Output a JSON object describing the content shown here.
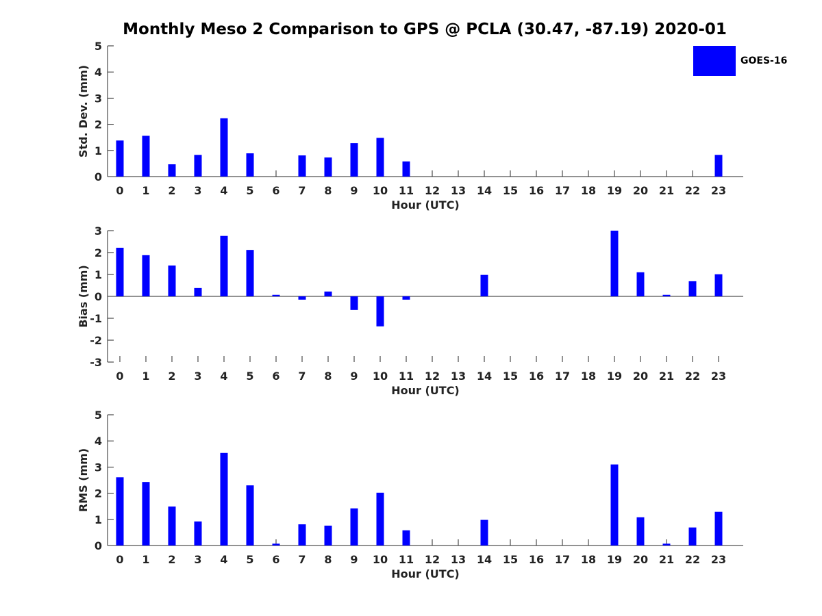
{
  "title": "Monthly Meso 2 Comparison to GPS @ PCLA (30.47, -87.19) 2020-01",
  "legend": {
    "label": "GOES-16",
    "color": "#0000ff"
  },
  "chart_data": [
    {
      "type": "bar",
      "series_name": "GOES-16",
      "xlabel": "Hour (UTC)",
      "ylabel": "Std. Dev. (mm)",
      "ylim": [
        0,
        5
      ],
      "yticks": [
        0,
        1,
        2,
        3,
        4,
        5
      ],
      "categories": [
        "0",
        "1",
        "2",
        "3",
        "4",
        "5",
        "6",
        "7",
        "8",
        "9",
        "10",
        "11",
        "12",
        "13",
        "14",
        "15",
        "16",
        "17",
        "18",
        "19",
        "20",
        "21",
        "22",
        "23"
      ],
      "values": [
        1.38,
        1.56,
        0.47,
        0.83,
        2.23,
        0.89,
        null,
        0.81,
        0.73,
        1.28,
        1.48,
        0.58,
        null,
        null,
        null,
        null,
        null,
        null,
        null,
        null,
        null,
        null,
        null,
        0.83
      ]
    },
    {
      "type": "bar",
      "series_name": "GOES-16",
      "xlabel": "Hour (UTC)",
      "ylabel": "Bias (mm)",
      "ylim": [
        -3,
        3
      ],
      "yticks": [
        -3,
        -2,
        -1,
        0,
        1,
        2,
        3
      ],
      "categories": [
        "0",
        "1",
        "2",
        "3",
        "4",
        "5",
        "6",
        "7",
        "8",
        "9",
        "10",
        "11",
        "12",
        "13",
        "14",
        "15",
        "16",
        "17",
        "18",
        "19",
        "20",
        "21",
        "22",
        "23"
      ],
      "values": [
        2.22,
        1.88,
        1.41,
        0.38,
        2.76,
        2.12,
        0.07,
        -0.15,
        0.22,
        -0.62,
        -1.37,
        -0.15,
        null,
        null,
        0.98,
        null,
        null,
        null,
        null,
        3.0,
        1.1,
        0.07,
        0.69,
        1.01
      ]
    },
    {
      "type": "bar",
      "series_name": "GOES-16",
      "xlabel": "Hour (UTC)",
      "ylabel": "RMS (mm)",
      "ylim": [
        0,
        5
      ],
      "yticks": [
        0,
        1,
        2,
        3,
        4,
        5
      ],
      "categories": [
        "0",
        "1",
        "2",
        "3",
        "4",
        "5",
        "6",
        "7",
        "8",
        "9",
        "10",
        "11",
        "12",
        "13",
        "14",
        "15",
        "16",
        "17",
        "18",
        "19",
        "20",
        "21",
        "22",
        "23"
      ],
      "values": [
        2.61,
        2.43,
        1.49,
        0.92,
        3.54,
        2.3,
        0.07,
        0.81,
        0.76,
        1.42,
        2.02,
        0.58,
        null,
        null,
        0.98,
        null,
        null,
        null,
        null,
        3.1,
        1.08,
        0.07,
        0.69,
        1.29
      ]
    }
  ]
}
